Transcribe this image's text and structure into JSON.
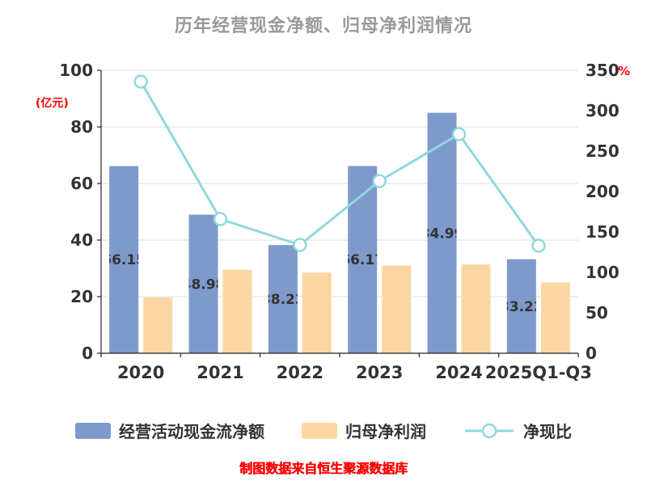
{
  "title": "历年经营现金净额、归母净利润情况",
  "footer": "制图数据来自恒生聚源数据库",
  "axes": {
    "left_unit": "(亿元)",
    "right_unit": "%"
  },
  "colors": {
    "bar_blue": "#7E99CC",
    "bar_orange": "#FAD7A2",
    "line_cyan": "#8FD8DC",
    "accent_red": "#FF0000",
    "title_gray": "#999999",
    "axis_text": "#333333",
    "grid_line": "#DDDDDD"
  },
  "chart_data": {
    "type": "bar+line",
    "categories": [
      "2020",
      "2021",
      "2022",
      "2023",
      "2024",
      "2025Q1-Q3"
    ],
    "series": [
      {
        "name": "经营活动现金流净额",
        "type": "bar",
        "axis": "left",
        "color_key": "bar_blue",
        "values": [
          66.15,
          48.98,
          38.23,
          66.17,
          84.99,
          33.22
        ],
        "data_labels": [
          "66.15",
          "48.98",
          "38.23",
          "66.17",
          "84.99",
          "33.22"
        ]
      },
      {
        "name": "归母净利润",
        "type": "bar",
        "axis": "left",
        "color_key": "bar_orange",
        "values": [
          19.7,
          29.5,
          28.5,
          31.0,
          31.4,
          25.0
        ]
      },
      {
        "name": "净现比",
        "type": "line",
        "axis": "right",
        "color_key": "line_cyan",
        "values": [
          336,
          166,
          134,
          213,
          271,
          133
        ]
      }
    ],
    "left_axis": {
      "label": "(亿元)",
      "min": 0,
      "max": 100,
      "step": 20,
      "ticks": [
        "0",
        "20",
        "40",
        "60",
        "80",
        "100"
      ]
    },
    "right_axis": {
      "label": "%",
      "min": 0,
      "max": 350,
      "step": 50,
      "ticks": [
        "0",
        "50",
        "100",
        "150",
        "200",
        "250",
        "300",
        "350"
      ]
    },
    "grid": true,
    "legend_position": "bottom"
  }
}
